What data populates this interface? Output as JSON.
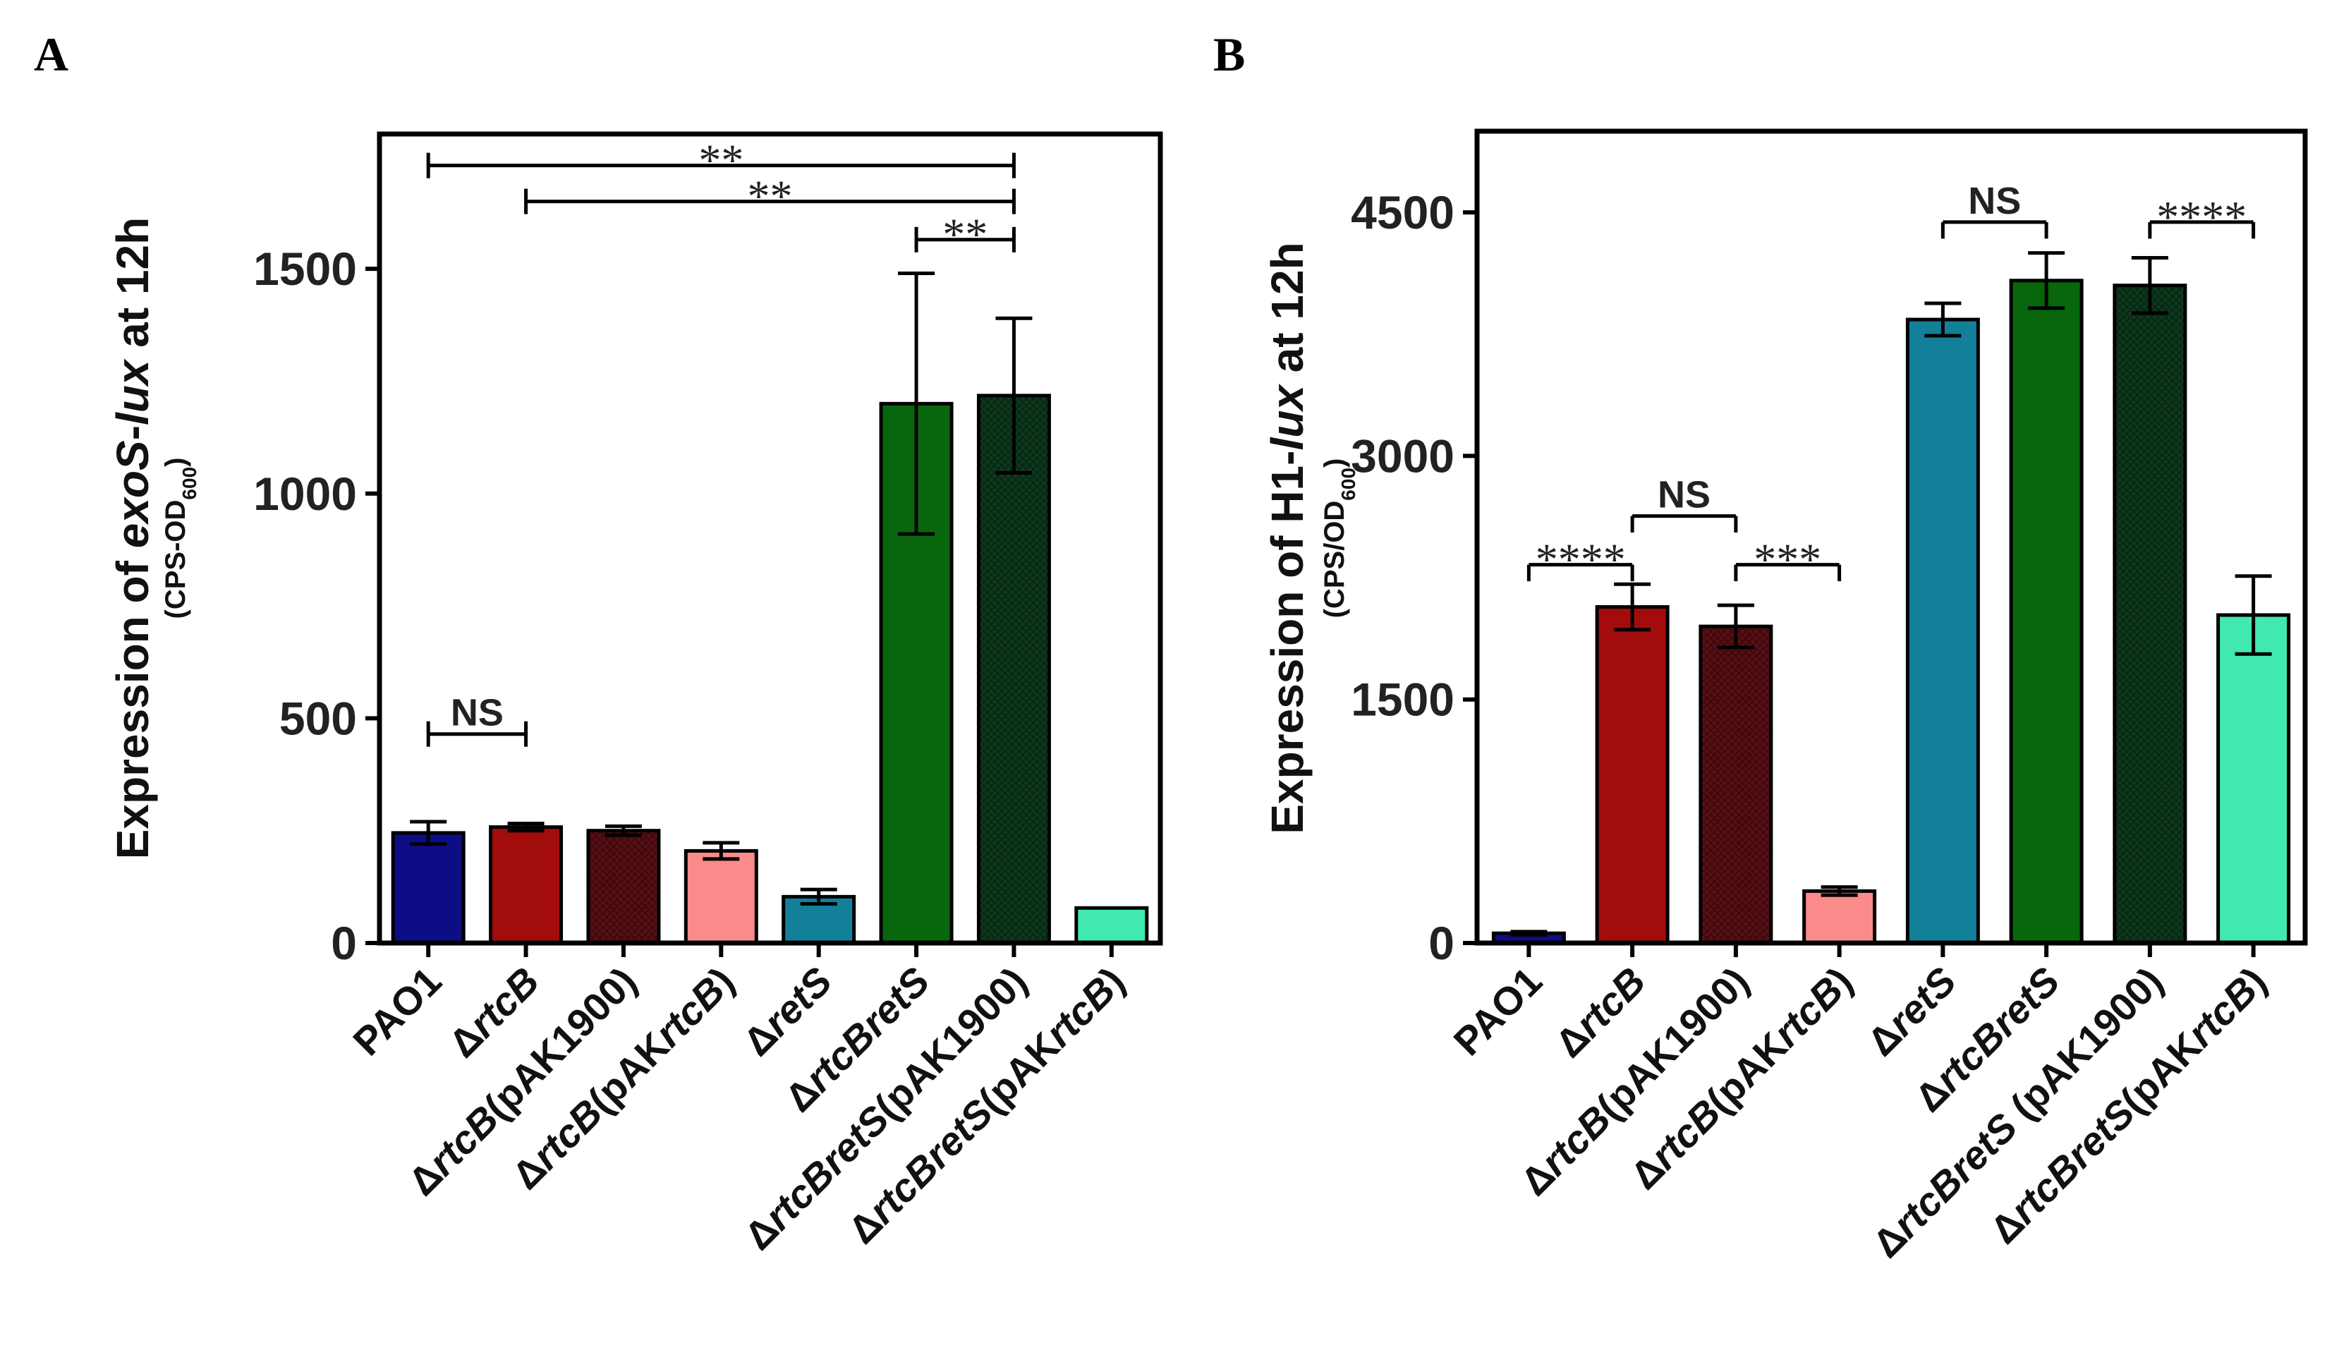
{
  "chart_data": [
    {
      "panel": "A",
      "type": "bar",
      "ylabel": {
        "prefix": "Expression of ",
        "italic": "exoS",
        "mid": "-",
        "italic2": "lux",
        "suffix": " at 12h",
        "sub": "(CPS-OD",
        "sub_sub": "600",
        "sub_end": ")"
      },
      "ylim": [
        0,
        1800
      ],
      "yticks": [
        0,
        500,
        1000,
        1500
      ],
      "categories": [
        {
          "parts": [
            [
              "",
              "PAO1"
            ]
          ]
        },
        {
          "parts": [
            [
              "",
              "Δ"
            ],
            [
              "i",
              "rtcB"
            ]
          ]
        },
        {
          "parts": [
            [
              "",
              "Δ"
            ],
            [
              "i",
              "rtcB"
            ],
            [
              "",
              "(pAK1900)"
            ]
          ]
        },
        {
          "parts": [
            [
              "",
              "Δ"
            ],
            [
              "i",
              "rtcB"
            ],
            [
              "",
              "(pAK"
            ],
            [
              "i",
              "rtcB"
            ],
            [
              "",
              ")"
            ]
          ]
        },
        {
          "parts": [
            [
              "",
              "Δ"
            ],
            [
              "i",
              "retS"
            ]
          ]
        },
        {
          "parts": [
            [
              "",
              "Δ"
            ],
            [
              "i",
              "rtcBretS"
            ]
          ]
        },
        {
          "parts": [
            [
              "",
              "Δ"
            ],
            [
              "i",
              "rtcBretS"
            ],
            [
              "",
              "(pAK1900)"
            ]
          ]
        },
        {
          "parts": [
            [
              "",
              "Δ"
            ],
            [
              "i",
              "rtcBretS"
            ],
            [
              "",
              "(pAK"
            ],
            [
              "i",
              "rtcB"
            ],
            [
              "",
              ")"
            ]
          ]
        }
      ],
      "values": [
        245,
        258,
        250,
        205,
        103,
        1200,
        1218,
        78
      ],
      "errors": [
        25,
        8,
        10,
        18,
        16,
        290,
        172,
        0
      ],
      "colors": [
        "#0d0d86",
        "#a30c0c",
        "#5a0f14",
        "#fb8a8a",
        "#13809a",
        "#08660c",
        "#0c3a1c",
        "#41e8b2"
      ],
      "hatched": [
        false,
        false,
        true,
        false,
        false,
        false,
        true,
        false
      ],
      "significance": [
        {
          "from": 0,
          "to": 1,
          "y": 465,
          "label": "NS",
          "style": "label",
          "ends": "both"
        },
        {
          "from": 0,
          "to": 6,
          "y": 1730,
          "label": "**",
          "style": "stars",
          "ends": "both"
        },
        {
          "from": 1,
          "to": 6,
          "y": 1650,
          "label": "**",
          "style": "stars",
          "ends": "both"
        },
        {
          "from": 5,
          "to": 6,
          "y": 1565,
          "label": "**",
          "style": "stars",
          "ends": "both"
        }
      ]
    },
    {
      "panel": "B",
      "type": "bar",
      "ylabel": {
        "prefix": "Expression of H1-",
        "italic": "lux",
        "mid": "",
        "italic2": "",
        "suffix": " at 12h",
        "sub": "(CPS/OD",
        "sub_sub": "600",
        "sub_end": ")"
      },
      "ylim": [
        0,
        5000
      ],
      "yticks": [
        0,
        1500,
        3000,
        4500
      ],
      "categories": [
        {
          "parts": [
            [
              "",
              "PAO1"
            ]
          ]
        },
        {
          "parts": [
            [
              "",
              "Δ"
            ],
            [
              "i",
              "rtcB"
            ]
          ]
        },
        {
          "parts": [
            [
              "",
              "Δ"
            ],
            [
              "i",
              "rtcB"
            ],
            [
              "",
              "(pAK1900)"
            ]
          ]
        },
        {
          "parts": [
            [
              "",
              "Δ"
            ],
            [
              "i",
              "rtcB"
            ],
            [
              "",
              "(pAK"
            ],
            [
              "i",
              "rtcB"
            ],
            [
              "",
              ")"
            ]
          ]
        },
        {
          "parts": [
            [
              "",
              "Δ"
            ],
            [
              "i",
              "retS"
            ]
          ]
        },
        {
          "parts": [
            [
              "",
              "Δ"
            ],
            [
              "i",
              "rtcBretS"
            ]
          ]
        },
        {
          "parts": [
            [
              "",
              "Δ"
            ],
            [
              "i",
              "rtcBretS"
            ],
            [
              "",
              " (pAK1900)"
            ]
          ]
        },
        {
          "parts": [
            [
              "",
              "Δ"
            ],
            [
              "i",
              "rtcBretS"
            ],
            [
              "",
              "(pAK"
            ],
            [
              "i",
              "rtcB"
            ],
            [
              "",
              ")"
            ]
          ]
        }
      ],
      "values": [
        60,
        2070,
        1950,
        320,
        3840,
        4080,
        4050,
        2020
      ],
      "errors": [
        10,
        140,
        130,
        25,
        100,
        170,
        170,
        240
      ],
      "colors": [
        "#0d0d86",
        "#a30c0c",
        "#5a0f14",
        "#fb8a8a",
        "#13809a",
        "#08660c",
        "#0c3a1c",
        "#41e8b2"
      ],
      "hatched": [
        false,
        false,
        true,
        false,
        false,
        false,
        true,
        false
      ],
      "significance": [
        {
          "from": 0,
          "to": 1,
          "y": 2330,
          "label": "****",
          "style": "stars",
          "ends": "down"
        },
        {
          "from": 1,
          "to": 2,
          "y": 2630,
          "label": "NS",
          "style": "label",
          "ends": "down"
        },
        {
          "from": 2,
          "to": 3,
          "y": 2330,
          "label": "***",
          "style": "stars",
          "ends": "down"
        },
        {
          "from": 4,
          "to": 5,
          "y": 4440,
          "label": "NS",
          "style": "label",
          "ends": "down"
        },
        {
          "from": 6,
          "to": 7,
          "y": 4440,
          "label": "****",
          "style": "stars",
          "ends": "down"
        }
      ]
    }
  ]
}
